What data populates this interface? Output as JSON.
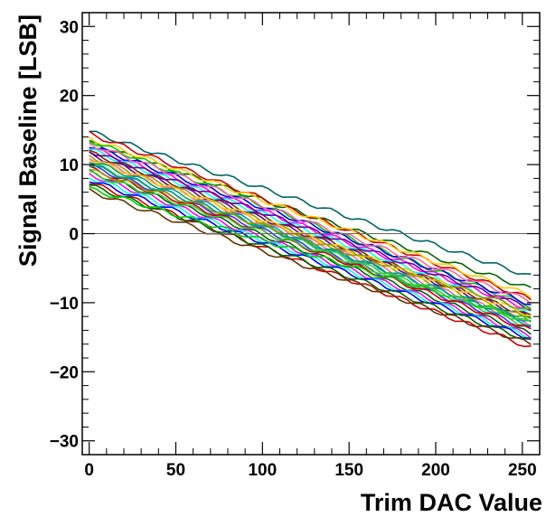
{
  "chart_data": {
    "type": "line",
    "title": "",
    "xlabel": "Trim DAC Value",
    "ylabel": "Signal Baseline [LSB]",
    "xlim": [
      -4,
      260
    ],
    "ylim": [
      -32,
      32
    ],
    "x_ticks": [
      0,
      50,
      100,
      150,
      200,
      250
    ],
    "y_ticks": [
      -30,
      -20,
      -10,
      0,
      10,
      20,
      30
    ],
    "reference_line_y": 0,
    "grid": false,
    "legend": "none",
    "series_note": "approximately 60 overlapping channel curves, each decreasing roughly linearly from x=0 to x=255",
    "series": [
      {
        "color": "#006666",
        "x": [
          0,
          255
        ],
        "y": [
          14.8,
          -6.2
        ]
      },
      {
        "color": "#006600",
        "x": [
          0,
          255
        ],
        "y": [
          13.2,
          -8.0
        ]
      },
      {
        "color": "#cc0000",
        "x": [
          0,
          255
        ],
        "y": [
          14.5,
          -9.5
        ]
      },
      {
        "color": "#ffcc00",
        "x": [
          0,
          255
        ],
        "y": [
          13.8,
          -9.0
        ]
      },
      {
        "color": "#00cc00",
        "x": [
          0,
          255
        ],
        "y": [
          13.5,
          -10.5
        ]
      },
      {
        "color": "#0000ff",
        "x": [
          0,
          255
        ],
        "y": [
          12.8,
          -10.2
        ]
      },
      {
        "color": "#ff00ff",
        "x": [
          0,
          255
        ],
        "y": [
          12.5,
          -11.0
        ]
      },
      {
        "color": "#00ffff",
        "x": [
          0,
          255
        ],
        "y": [
          12.2,
          -11.5
        ]
      },
      {
        "color": "#663300",
        "x": [
          0,
          255
        ],
        "y": [
          11.8,
          -12.0
        ]
      },
      {
        "color": "#660099",
        "x": [
          0,
          255
        ],
        "y": [
          11.5,
          -12.2
        ]
      },
      {
        "color": "#999900",
        "x": [
          0,
          255
        ],
        "y": [
          11.2,
          -12.5
        ]
      },
      {
        "color": "#ff6699",
        "x": [
          0,
          255
        ],
        "y": [
          11.0,
          -13.0
        ]
      },
      {
        "color": "#009999",
        "x": [
          0,
          255
        ],
        "y": [
          10.6,
          -13.2
        ]
      },
      {
        "color": "#33cc33",
        "x": [
          0,
          255
        ],
        "y": [
          10.2,
          -13.5
        ]
      },
      {
        "color": "#3333ff",
        "x": [
          0,
          255
        ],
        "y": [
          9.8,
          -13.8
        ]
      },
      {
        "color": "#cc0000",
        "x": [
          0,
          255
        ],
        "y": [
          9.5,
          -14.0
        ]
      },
      {
        "color": "#006600",
        "x": [
          0,
          255
        ],
        "y": [
          9.0,
          -14.5
        ]
      },
      {
        "color": "#ff00ff",
        "x": [
          0,
          255
        ],
        "y": [
          8.6,
          -14.8
        ]
      },
      {
        "color": "#00ffff",
        "x": [
          0,
          255
        ],
        "y": [
          8.2,
          -15.0
        ]
      },
      {
        "color": "#0000ff",
        "x": [
          0,
          255
        ],
        "y": [
          7.8,
          -15.2
        ]
      },
      {
        "color": "#cc0000",
        "x": [
          0,
          255
        ],
        "y": [
          7.4,
          -16.5
        ]
      },
      {
        "color": "#006600",
        "x": [
          0,
          255
        ],
        "y": [
          7.0,
          -15.5
        ]
      },
      {
        "color": "#00cc00",
        "x": [
          0,
          255
        ],
        "y": [
          6.5,
          -12.5
        ]
      },
      {
        "color": "#663300",
        "x": [
          0,
          255
        ],
        "y": [
          6.2,
          -16.0
        ]
      },
      {
        "color": "#ff6699",
        "x": [
          0,
          255
        ],
        "y": [
          13.0,
          -9.8
        ]
      },
      {
        "color": "#660099",
        "x": [
          0,
          255
        ],
        "y": [
          12.0,
          -10.8
        ]
      },
      {
        "color": "#ffcc00",
        "x": [
          0,
          255
        ],
        "y": [
          10.8,
          -11.8
        ]
      },
      {
        "color": "#009999",
        "x": [
          0,
          255
        ],
        "y": [
          10.0,
          -12.8
        ]
      },
      {
        "color": "#999900",
        "x": [
          0,
          255
        ],
        "y": [
          9.2,
          -11.2
        ]
      },
      {
        "color": "#33cc33",
        "x": [
          0,
          255
        ],
        "y": [
          8.8,
          -13.0
        ]
      }
    ]
  }
}
